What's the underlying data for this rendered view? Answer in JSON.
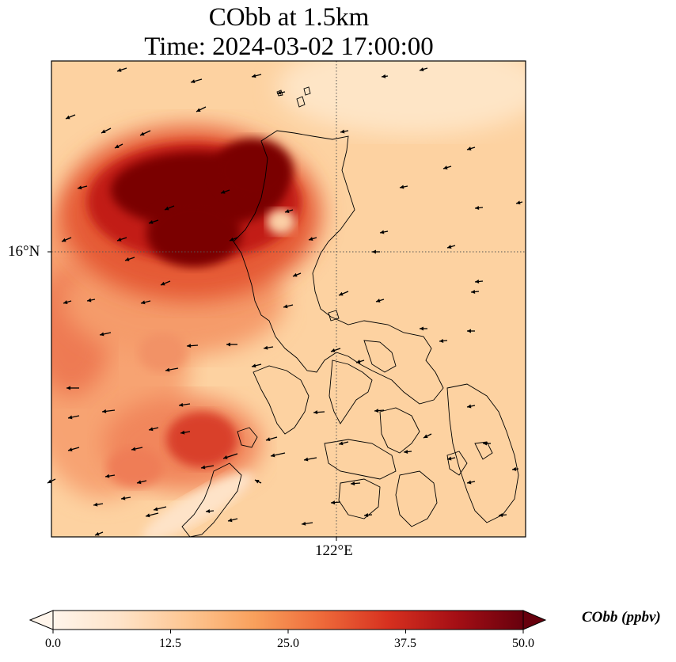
{
  "title_line1": "CObb at 1.5km",
  "title_line2": "Time: 2024-03-02 17:00:00",
  "lat_tick": "16°N",
  "lon_tick": "122°E",
  "colorbar": {
    "label": "CObb (ppbv)",
    "ticks": [
      "0.0",
      "12.5",
      "25.0",
      "37.5",
      "50.0"
    ],
    "min": 0,
    "max": 50,
    "colors": [
      "#fff5eb",
      "#fee3c8",
      "#fdc692",
      "#f9a05c",
      "#ee6a3a",
      "#d7301f",
      "#a50f15",
      "#67000d"
    ]
  },
  "map": {
    "field": "CObb",
    "units": "ppbv",
    "level": "1.5km",
    "gridlines": "dotted",
    "coastline_color": "#000000",
    "wind_vectors": "black arrows"
  }
}
